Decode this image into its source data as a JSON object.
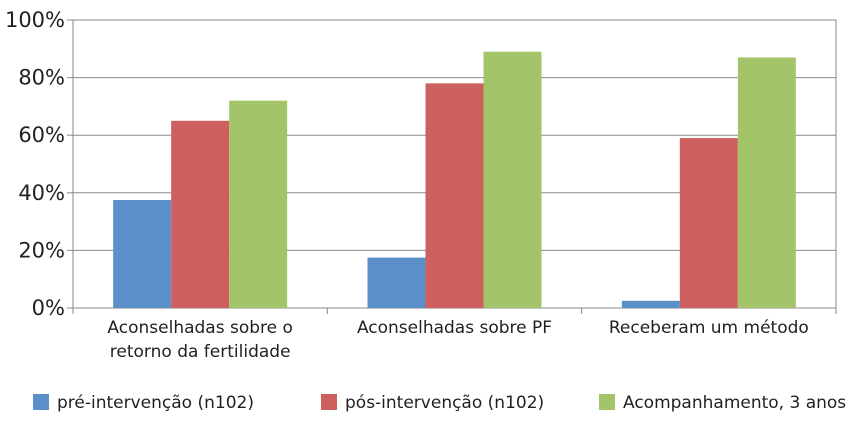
{
  "chart_data": {
    "type": "bar",
    "categories": [
      [
        "Aconselhadas sobre o",
        "retorno da fertilidade"
      ],
      [
        "Aconselhadas sobre PF"
      ],
      [
        "Receberam um método"
      ]
    ],
    "series": [
      {
        "name": "pré-intervenção (n102)",
        "color": "#5b8fc9",
        "values": [
          37.5,
          17.5,
          2.5
        ]
      },
      {
        "name": "pós-intervenção (n102)",
        "color": "#cd5f5e",
        "values": [
          65,
          78,
          59
        ]
      },
      {
        "name": "Acompanhamento, 3 anos",
        "color": "#a4c46a",
        "values": [
          72,
          89,
          87
        ]
      }
    ],
    "ylim": [
      0,
      100
    ],
    "yticks": [
      "0%",
      "20%",
      "40%",
      "60%",
      "80%",
      "100%"
    ],
    "legend_position": "bottom",
    "grid": true
  }
}
